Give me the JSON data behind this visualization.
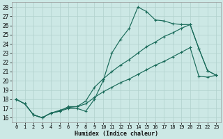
{
  "xlabel": "Humidex (Indice chaleur)",
  "x_ticks": [
    0,
    1,
    2,
    3,
    4,
    5,
    6,
    7,
    8,
    9,
    10,
    11,
    12,
    13,
    14,
    15,
    16,
    17,
    18,
    19,
    20,
    21,
    22,
    23
  ],
  "xlim": [
    -0.5,
    23.5
  ],
  "ylim": [
    15.5,
    28.5
  ],
  "y_ticks": [
    16,
    17,
    18,
    19,
    20,
    21,
    22,
    23,
    24,
    25,
    26,
    27,
    28
  ],
  "bg_color": "#cce8e5",
  "grid_color": "#b0d0cc",
  "line_color": "#1a6b5a",
  "s1_x": [
    0,
    1,
    2,
    3,
    4,
    5,
    6,
    7,
    8,
    9,
    10,
    11,
    12,
    13,
    14,
    15,
    16,
    17,
    18,
    19,
    20,
    21,
    22,
    23
  ],
  "s1_y": [
    18.0,
    17.5,
    16.3,
    16.0,
    16.5,
    16.7,
    17.0,
    17.0,
    16.7,
    18.0,
    20.0,
    23.0,
    24.5,
    25.7,
    28.0,
    27.5,
    26.6,
    26.5,
    26.2,
    26.1,
    26.1,
    23.5,
    21.1,
    20.6
  ],
  "s2_x": [
    0,
    1,
    2,
    3,
    4,
    5,
    6,
    7,
    8,
    9,
    10,
    11,
    12,
    13,
    14,
    15,
    16,
    17,
    18,
    19,
    20,
    21,
    22,
    23
  ],
  "s2_y": [
    18.0,
    17.5,
    16.3,
    16.0,
    16.5,
    16.7,
    17.2,
    17.2,
    17.8,
    19.3,
    20.2,
    21.0,
    21.7,
    22.3,
    23.0,
    23.7,
    24.2,
    24.8,
    25.2,
    25.7,
    26.1,
    23.5,
    21.1,
    20.6
  ],
  "s3_x": [
    0,
    1,
    2,
    3,
    4,
    5,
    6,
    7,
    8,
    9,
    10,
    11,
    12,
    13,
    14,
    15,
    16,
    17,
    18,
    19,
    20,
    21,
    22,
    23
  ],
  "s3_y": [
    18.0,
    17.5,
    16.3,
    16.0,
    16.5,
    16.8,
    17.1,
    17.2,
    17.5,
    18.2,
    18.8,
    19.3,
    19.8,
    20.2,
    20.7,
    21.2,
    21.7,
    22.1,
    22.6,
    23.1,
    23.6,
    20.5,
    20.4,
    20.6
  ]
}
